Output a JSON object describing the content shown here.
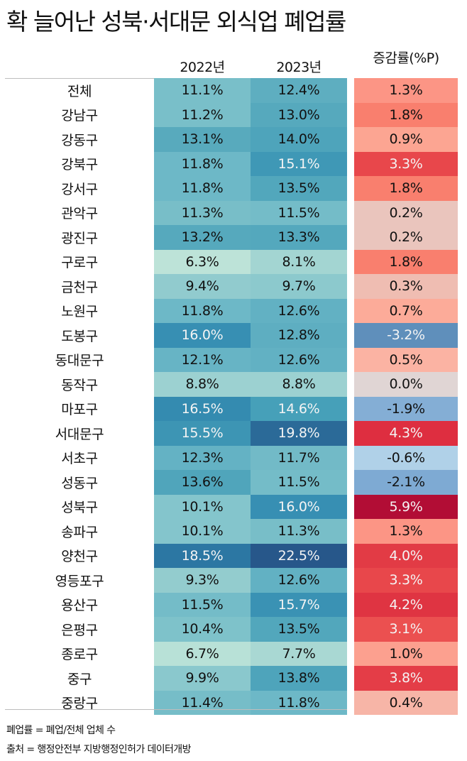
{
  "title": "확 늘어난 성북·서대문 외식업 폐업률",
  "headers": {
    "col_2022": "2022년",
    "col_2023": "2023년",
    "col_change": "증감률(%P)"
  },
  "rows": [
    {
      "district": "전체",
      "v2022": "11.1%",
      "v2023": "12.4%",
      "change": "1.3%",
      "c22": "#79bfc9",
      "c23": "#5eaec0",
      "cc": "#fc9585",
      "t22": "dark",
      "t23": "dark",
      "tc": "dark"
    },
    {
      "district": "강남구",
      "v2022": "11.2%",
      "v2023": "13.0%",
      "change": "1.8%",
      "c22": "#79bfc9",
      "c23": "#56a9bd",
      "cc": "#f97f6e",
      "t22": "dark",
      "t23": "dark",
      "tc": "dark"
    },
    {
      "district": "강동구",
      "v2022": "13.1%",
      "v2023": "14.0%",
      "change": "0.9%",
      "c22": "#58aabd",
      "c23": "#4ea4bb",
      "cc": "#fca592",
      "t22": "dark",
      "t23": "dark",
      "tc": "dark"
    },
    {
      "district": "강북구",
      "v2022": "11.8%",
      "v2023": "15.1%",
      "change": "3.3%",
      "c22": "#6db8c7",
      "c23": "#3f98b6",
      "cc": "#e8474b",
      "t22": "dark",
      "t23": "light",
      "tc": "light"
    },
    {
      "district": "강서구",
      "v2022": "11.8%",
      "v2023": "13.5%",
      "change": "1.8%",
      "c22": "#6db8c7",
      "c23": "#52a7bc",
      "cc": "#f97f6e",
      "t22": "dark",
      "t23": "dark",
      "tc": "dark"
    },
    {
      "district": "관악구",
      "v2022": "11.3%",
      "v2023": "11.5%",
      "change": "0.2%",
      "c22": "#78bec8",
      "c23": "#74bcc8",
      "cc": "#eac5bd",
      "t22": "dark",
      "t23": "dark",
      "tc": "dark"
    },
    {
      "district": "광진구",
      "v2022": "13.2%",
      "v2023": "13.3%",
      "change": "0.2%",
      "c22": "#56a9bd",
      "c23": "#54a8bd",
      "cc": "#eac5bd",
      "t22": "dark",
      "t23": "dark",
      "tc": "dark"
    },
    {
      "district": "구로구",
      "v2022": "6.3%",
      "v2023": "8.1%",
      "change": "1.8%",
      "c22": "#bde3d8",
      "c23": "#a3d5d2",
      "cc": "#f97f6e",
      "t22": "dark",
      "t23": "dark",
      "tc": "dark"
    },
    {
      "district": "금천구",
      "v2022": "9.4%",
      "v2023": "9.7%",
      "change": "0.3%",
      "c22": "#91cbce",
      "c23": "#8cc9cd",
      "cc": "#efbdb2",
      "t22": "dark",
      "t23": "dark",
      "tc": "dark"
    },
    {
      "district": "노원구",
      "v2022": "11.8%",
      "v2023": "12.6%",
      "change": "0.7%",
      "c22": "#6db8c7",
      "c23": "#62b1c3",
      "cc": "#fcab99",
      "t22": "dark",
      "t23": "dark",
      "tc": "dark"
    },
    {
      "district": "도봉구",
      "v2022": "16.0%",
      "v2023": "12.8%",
      "change": "-3.2%",
      "c22": "#378fb3",
      "c23": "#5eaec1",
      "cc": "#5f8fbb",
      "t22": "light",
      "t23": "dark",
      "tc": "light"
    },
    {
      "district": "동대문구",
      "v2022": "12.1%",
      "v2023": "12.6%",
      "change": "0.5%",
      "c22": "#67b4c5",
      "c23": "#62b1c3",
      "cc": "#fbb3a3",
      "t22": "dark",
      "t23": "dark",
      "tc": "dark"
    },
    {
      "district": "동작구",
      "v2022": "8.8%",
      "v2023": "8.8%",
      "change": "0.0%",
      "c22": "#9cd1d1",
      "c23": "#9cd1d1",
      "cc": "#e0d5d4",
      "t22": "dark",
      "t23": "dark",
      "tc": "dark"
    },
    {
      "district": "마포구",
      "v2022": "16.5%",
      "v2023": "14.6%",
      "change": "-1.9%",
      "c22": "#348bb0",
      "c23": "#46a0b9",
      "cc": "#84aed5",
      "t22": "light",
      "t23": "light",
      "tc": "dark"
    },
    {
      "district": "서대문구",
      "v2022": "15.5%",
      "v2023": "19.8%",
      "change": "4.3%",
      "c22": "#3d95b4",
      "c23": "#2b6a98",
      "cc": "#de2e40",
      "t22": "light",
      "t23": "light",
      "tc": "light"
    },
    {
      "district": "서초구",
      "v2022": "12.3%",
      "v2023": "11.7%",
      "change": "-0.6%",
      "c22": "#64b2c4",
      "c23": "#72bac7",
      "cc": "#b0d1e8",
      "t22": "dark",
      "t23": "dark",
      "tc": "dark"
    },
    {
      "district": "성동구",
      "v2022": "13.6%",
      "v2023": "11.5%",
      "change": "-2.1%",
      "c22": "#50a5bb",
      "c23": "#74bcc8",
      "cc": "#7eaad3",
      "t22": "dark",
      "t23": "dark",
      "tc": "dark"
    },
    {
      "district": "성북구",
      "v2022": "10.1%",
      "v2023": "16.0%",
      "change": "5.9%",
      "c22": "#84c5cc",
      "c23": "#378fb3",
      "cc": "#b20d35",
      "t22": "dark",
      "t23": "light",
      "tc": "light"
    },
    {
      "district": "송파구",
      "v2022": "10.1%",
      "v2023": "11.3%",
      "change": "1.3%",
      "c22": "#84c5cc",
      "c23": "#78bec8",
      "cc": "#fc9585",
      "t22": "dark",
      "t23": "dark",
      "tc": "dark"
    },
    {
      "district": "양천구",
      "v2022": "18.5%",
      "v2023": "22.5%",
      "change": "4.0%",
      "c22": "#2c77a3",
      "c23": "#27578a",
      "cc": "#e23b45",
      "t22": "light",
      "t23": "light",
      "tc": "light"
    },
    {
      "district": "영등포구",
      "v2022": "9.3%",
      "v2023": "12.6%",
      "change": "3.3%",
      "c22": "#93ccce",
      "c23": "#62b1c3",
      "cc": "#e8474b",
      "t22": "dark",
      "t23": "dark",
      "tc": "light"
    },
    {
      "district": "용산구",
      "v2022": "11.5%",
      "v2023": "15.7%",
      "change": "4.2%",
      "c22": "#74bcc8",
      "c23": "#3a92b4",
      "cc": "#df3442",
      "t22": "dark",
      "t23": "light",
      "tc": "light"
    },
    {
      "district": "은평구",
      "v2022": "10.4%",
      "v2023": "13.5%",
      "change": "3.1%",
      "c22": "#7ec2ca",
      "c23": "#52a7bc",
      "cc": "#eb5050",
      "t22": "dark",
      "t23": "dark",
      "tc": "light"
    },
    {
      "district": "종로구",
      "v2022": "6.7%",
      "v2023": "7.7%",
      "change": "1.0%",
      "c22": "#b8e1d7",
      "c23": "#a9d8d3",
      "cc": "#fca08f",
      "t22": "dark",
      "t23": "dark",
      "tc": "dark"
    },
    {
      "district": "중구",
      "v2022": "9.9%",
      "v2023": "13.8%",
      "change": "3.8%",
      "c22": "#8ac8cd",
      "c23": "#4ea4bb",
      "cc": "#e43d47",
      "t22": "dark",
      "t23": "dark",
      "tc": "light"
    },
    {
      "district": "중랑구",
      "v2022": "11.4%",
      "v2023": "11.8%",
      "change": "0.4%",
      "c22": "#76bdc8",
      "c23": "#6db8c7",
      "cc": "#f7b5a7",
      "t22": "dark",
      "t23": "dark",
      "tc": "dark"
    }
  ],
  "notes": {
    "definition": "폐업률 = 폐업/전체 업체 수",
    "source": "출처 = 행정안전부 지방행정인허가 데이터개방"
  },
  "chart_data": {
    "type": "heatmap",
    "title": "확 늘어난 성북·서대문 외식업 폐업률",
    "columns": [
      "2022년",
      "2023년",
      "증감률(%P)"
    ],
    "categories": [
      "전체",
      "강남구",
      "강동구",
      "강북구",
      "강서구",
      "관악구",
      "광진구",
      "구로구",
      "금천구",
      "노원구",
      "도봉구",
      "동대문구",
      "동작구",
      "마포구",
      "서대문구",
      "서초구",
      "성동구",
      "성북구",
      "송파구",
      "양천구",
      "영등포구",
      "용산구",
      "은평구",
      "종로구",
      "중구",
      "중랑구"
    ],
    "series": [
      {
        "name": "2022년",
        "unit": "%",
        "values": [
          11.1,
          11.2,
          13.1,
          11.8,
          11.8,
          11.3,
          13.2,
          6.3,
          9.4,
          11.8,
          16.0,
          12.1,
          8.8,
          16.5,
          15.5,
          12.3,
          13.6,
          10.1,
          10.1,
          18.5,
          9.3,
          11.5,
          10.4,
          6.7,
          9.9,
          11.4
        ]
      },
      {
        "name": "2023년",
        "unit": "%",
        "values": [
          12.4,
          13.0,
          14.0,
          15.1,
          13.5,
          11.5,
          13.3,
          8.1,
          9.7,
          12.6,
          12.8,
          12.6,
          8.8,
          14.6,
          19.8,
          11.7,
          11.5,
          16.0,
          11.3,
          22.5,
          12.6,
          15.7,
          13.5,
          7.7,
          13.8,
          11.8
        ]
      },
      {
        "name": "증감률(%P)",
        "unit": "%P",
        "values": [
          1.3,
          1.8,
          0.9,
          3.3,
          1.8,
          0.2,
          0.2,
          1.8,
          0.3,
          0.7,
          -3.2,
          0.5,
          0.0,
          -1.9,
          4.3,
          -0.6,
          -2.1,
          5.9,
          1.3,
          4.0,
          3.3,
          4.2,
          3.1,
          1.0,
          3.8,
          0.4
        ]
      }
    ],
    "color_scales": {
      "rates": "light teal (low) to dark blue (high)",
      "change": "blue (negative) to dark red (positive)"
    },
    "notes": [
      "폐업률 = 폐업/전체 업체 수",
      "출처 = 행정안전부 지방행정인허가 데이터개방"
    ]
  }
}
